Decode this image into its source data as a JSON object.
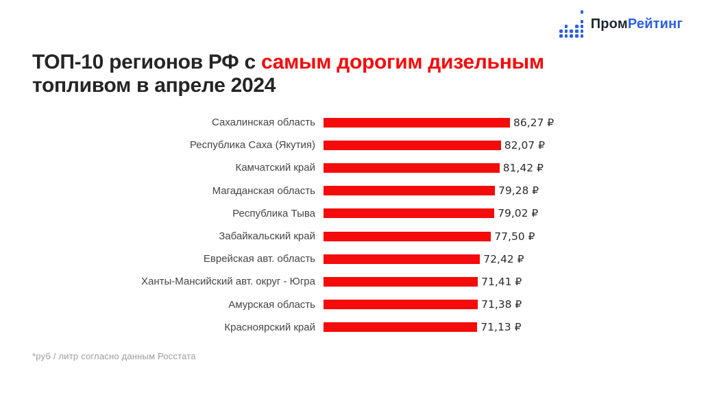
{
  "logo": {
    "icon": "dot-bar-chart-icon",
    "text_dark": "Пром",
    "text_blue": "Рейтинг",
    "color_dark": "#1F2633",
    "color_blue": "#2B5FE3"
  },
  "title": {
    "line1_black": "ТОП-10 регионов РФ с ",
    "line1_red": "самым дорогим дизельным",
    "line2_black": "топливом в апреле 2024",
    "color_black": "#252525",
    "color_red": "#F40B0B"
  },
  "footnote": {
    "text": "*руб / литр согласно данным Росстата",
    "color": "#9B9B9B"
  },
  "chart_data": {
    "type": "bar",
    "orientation": "horizontal",
    "title": "ТОП-10 регионов РФ с самым дорогим дизельным топливом в апреле 2024",
    "xlabel": "руб / литр",
    "ylabel": "",
    "xlim": [
      0,
      86.27
    ],
    "grid": false,
    "legend": false,
    "bar_color": "#F40B0B",
    "value_unit": "₽",
    "categories": [
      "Сахалинская область",
      "Республика Саха (Якутия)",
      "Камчатский край",
      "Магаданская область",
      "Республика Тыва",
      "Забайкальский край",
      "Еврейская авт. область",
      "Ханты-Мансийский авт. округ - Югра",
      "Амурская область",
      "Красноярский край"
    ],
    "values": [
      86.27,
      82.07,
      81.42,
      79.28,
      79.02,
      77.5,
      72.42,
      71.41,
      71.38,
      71.13
    ],
    "rows": [
      {
        "label": "Сахалинская область",
        "value": 86.27,
        "display": "86,27 ₽"
      },
      {
        "label": "Республика Саха (Якутия)",
        "value": 82.07,
        "display": "82,07 ₽"
      },
      {
        "label": "Камчатский край",
        "value": 81.42,
        "display": "81,42 ₽"
      },
      {
        "label": "Магаданская область",
        "value": 79.28,
        "display": "79,28 ₽"
      },
      {
        "label": "Республика Тыва",
        "value": 79.02,
        "display": "79,02 ₽"
      },
      {
        "label": "Забайкальский край",
        "value": 77.5,
        "display": "77,50 ₽"
      },
      {
        "label": "Еврейская авт. область",
        "value": 72.42,
        "display": "72,42 ₽"
      },
      {
        "label": "Ханты-Мансийский авт. округ - Югра",
        "value": 71.41,
        "display": "71,41 ₽"
      },
      {
        "label": "Амурская область",
        "value": 71.38,
        "display": "71,38 ₽"
      },
      {
        "label": "Красноярский край",
        "value": 71.13,
        "display": "71,13 ₽"
      }
    ]
  }
}
